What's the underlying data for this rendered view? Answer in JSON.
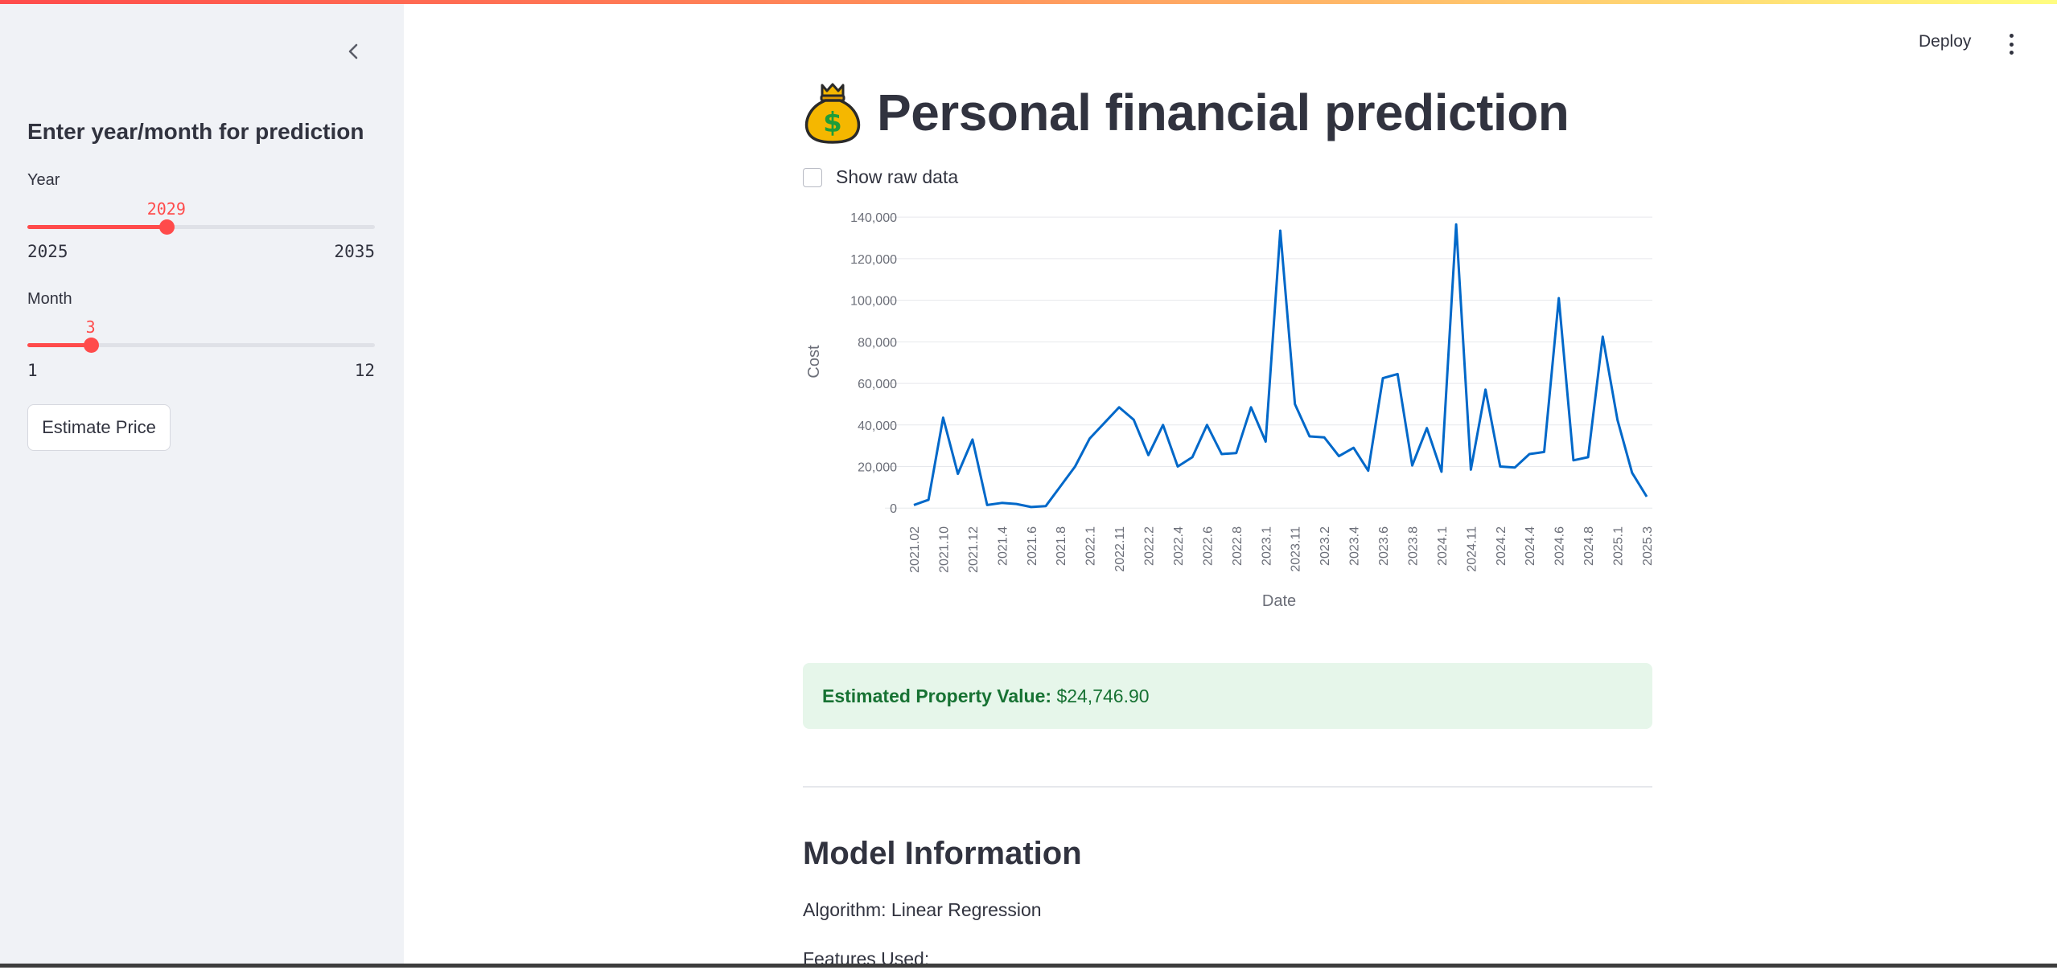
{
  "sidebar": {
    "title": "Enter year/month for prediction",
    "year": {
      "label": "Year",
      "value": "2029",
      "min": "2025",
      "max": "2035",
      "fraction": 0.4
    },
    "month": {
      "label": "Month",
      "value": "3",
      "min": "1",
      "max": "12",
      "fraction": 0.182
    },
    "button_label": "Estimate Price",
    "collapse_icon": "chevron-left-icon"
  },
  "header": {
    "deploy_label": "Deploy",
    "menu_icon": "vertical-ellipsis-icon"
  },
  "main": {
    "title_icon": "money-bag-icon",
    "title": "Personal financial prediction",
    "show_raw_label": "Show raw data",
    "result_label": "Estimated Property Value:",
    "result_value": "$24,746.90",
    "section_title": "Model Information",
    "algorithm": "Algorithm: Linear Regression",
    "features": "Features Used:"
  },
  "colors": {
    "accent": "#ff4b4b",
    "line": "#0068c9",
    "success_bg": "#e6f6ea",
    "success_text": "#177233",
    "sidebar_bg": "#f0f2f6"
  },
  "chart_data": {
    "type": "line",
    "xlabel": "Date",
    "ylabel": "Cost",
    "ylim": [
      -3000,
      142000
    ],
    "yticks": [
      0,
      20000,
      40000,
      60000,
      80000,
      100000,
      120000,
      140000
    ],
    "ytick_labels": [
      "0",
      "20,000",
      "40,000",
      "60,000",
      "80,000",
      "100,000",
      "120,000",
      "140,000"
    ],
    "xtick_labels": [
      "2021.02",
      "2021.10",
      "2021.12",
      "2021.4",
      "2021.6",
      "2021.8",
      "2022.1",
      "2022.11",
      "2022.2",
      "2022.4",
      "2022.6",
      "2022.8",
      "2023.1",
      "2023.11",
      "2023.2",
      "2023.4",
      "2023.6",
      "2023.8",
      "2024.1",
      "2024.11",
      "2024.2",
      "2024.4",
      "2024.6",
      "2024.8",
      "2025.1",
      "2025.3"
    ],
    "legend": "none",
    "grid": "horizontal",
    "values": [
      1500,
      4000,
      43500,
      16500,
      33000,
      1500,
      2500,
      2000,
      500,
      1000,
      10500,
      20000,
      33500,
      41000,
      48500,
      42500,
      25500,
      40000,
      20000,
      24500,
      40000,
      26000,
      26500,
      48500,
      32000,
      133500,
      50000,
      34500,
      34000,
      25000,
      29000,
      18000,
      62500,
      64500,
      20500,
      38500,
      17500,
      136500,
      18500,
      57000,
      20000,
      19500,
      26000,
      27000,
      101000,
      23000,
      24500,
      82500,
      42500,
      17000,
      5500
    ]
  }
}
